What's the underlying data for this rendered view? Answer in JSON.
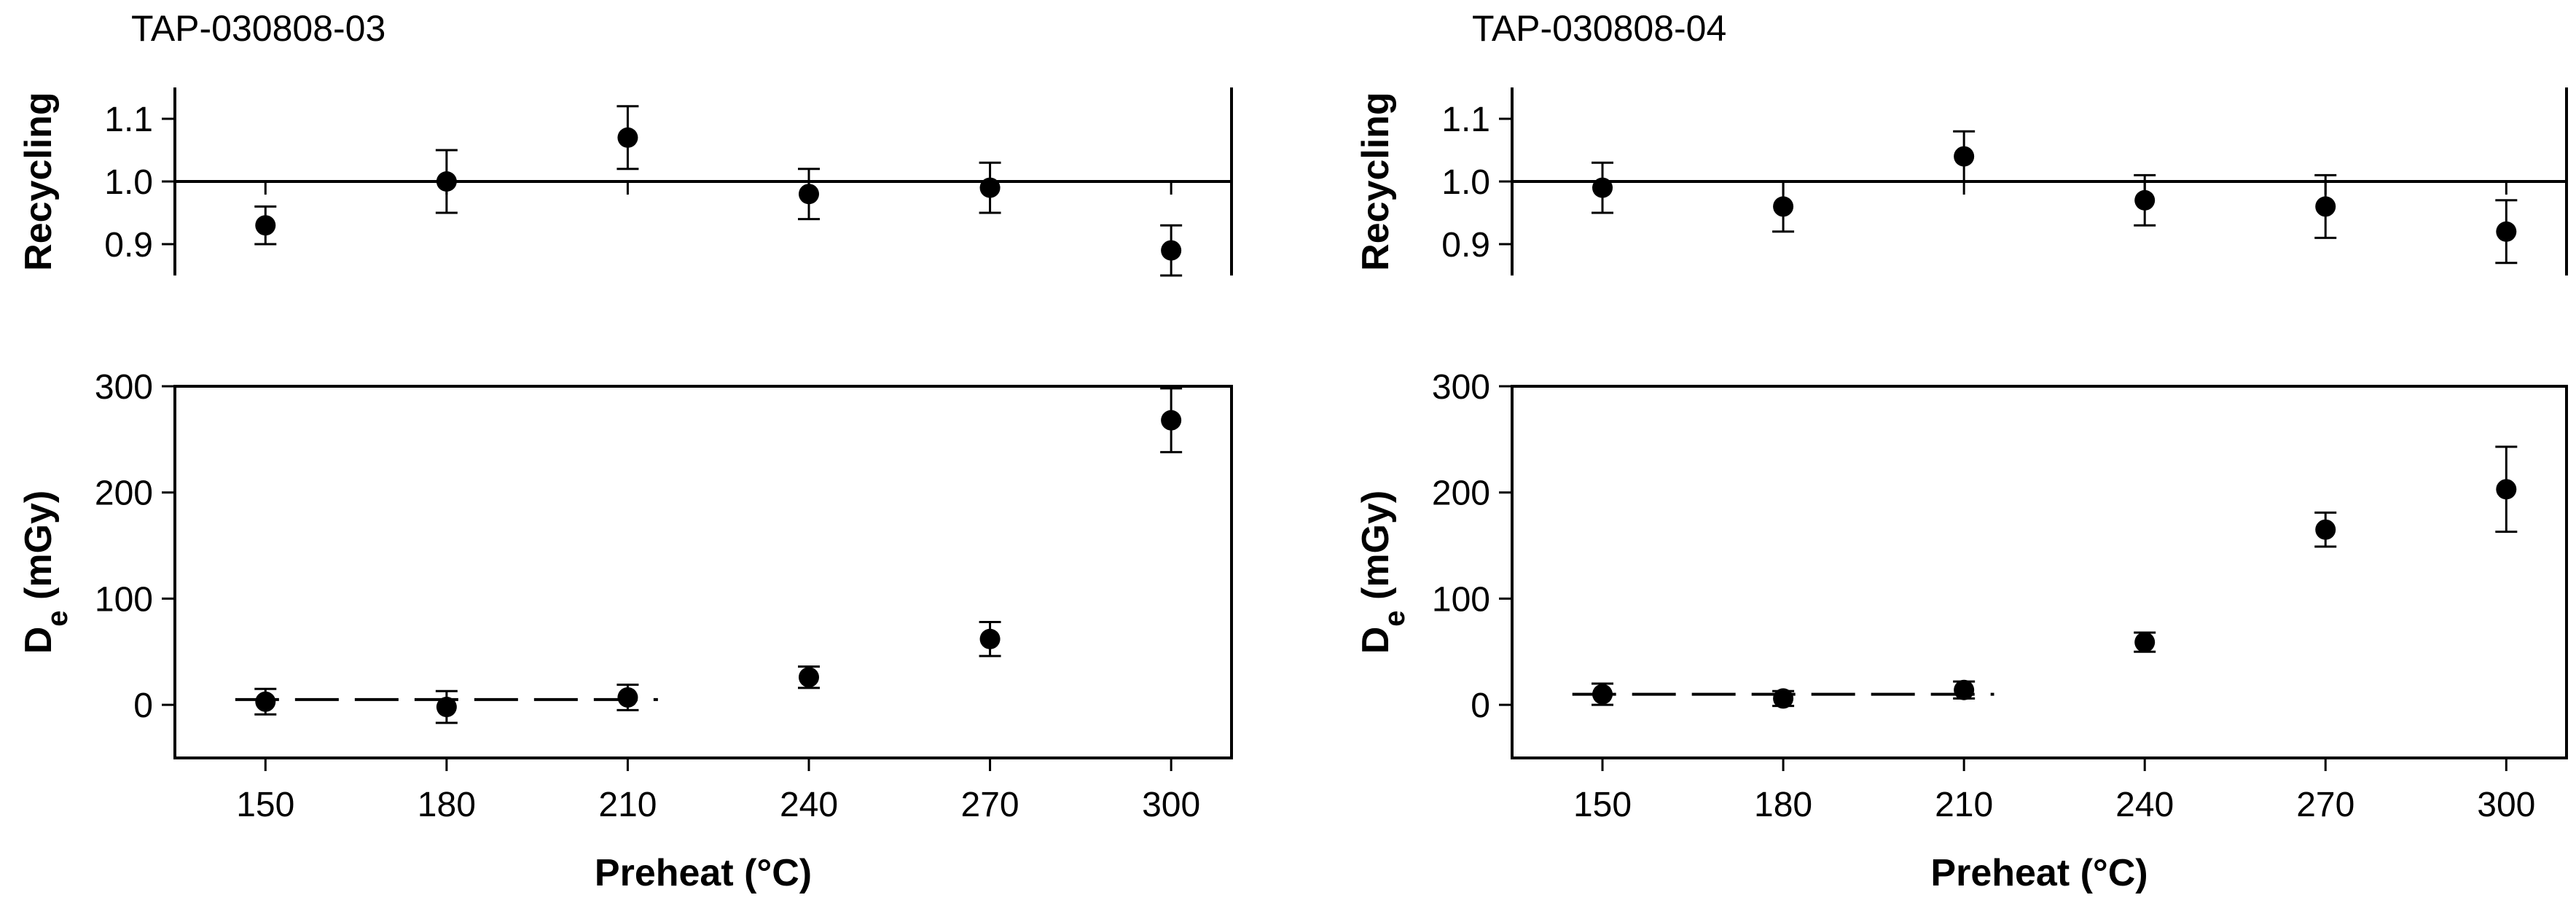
{
  "chart_data": [
    {
      "type": "scatter",
      "title": "TAP-030808-03",
      "panels": [
        {
          "id": "recycling",
          "ylabel": "Recycling",
          "ylim": [
            0.85,
            1.15
          ],
          "yticks": [
            0.9,
            1.0,
            1.1
          ],
          "ytick_labels": [
            "0.9",
            "1.0",
            "1.1"
          ],
          "reference_line": 1.0,
          "x": [
            150,
            180,
            210,
            240,
            270,
            300
          ],
          "values": [
            0.93,
            1.0,
            1.07,
            0.98,
            0.99,
            0.89
          ],
          "errors": [
            0.03,
            0.05,
            0.05,
            0.04,
            0.04,
            0.04
          ]
        },
        {
          "id": "de",
          "ylabel": "D",
          "ylabel_subscript": "e",
          "ylabel_unit": "(mGy)",
          "ylim": [
            -50,
            300
          ],
          "yticks": [
            0,
            100,
            200,
            300
          ],
          "ytick_labels": [
            "0",
            "100",
            "200",
            "300"
          ],
          "x": [
            150,
            180,
            210,
            240,
            270,
            300
          ],
          "values": [
            3,
            -2,
            7,
            26,
            62,
            268
          ],
          "errors": [
            12,
            15,
            12,
            10,
            16,
            30
          ],
          "dashed_line": {
            "x": [
              145,
              215
            ],
            "y": 5
          }
        }
      ],
      "xlabel": "Preheat (°C)",
      "xlim": [
        135,
        310
      ],
      "xticks": [
        150,
        180,
        210,
        240,
        270,
        300
      ],
      "xtick_labels": [
        "150",
        "180",
        "210",
        "240",
        "270",
        "300"
      ]
    },
    {
      "type": "scatter",
      "title": "TAP-030808-04",
      "panels": [
        {
          "id": "recycling",
          "ylabel": "Recycling",
          "ylim": [
            0.85,
            1.15
          ],
          "yticks": [
            0.9,
            1.0,
            1.1
          ],
          "ytick_labels": [
            "0.9",
            "1.0",
            "1.1"
          ],
          "reference_line": 1.0,
          "x": [
            150,
            180,
            210,
            240,
            270,
            300
          ],
          "values": [
            0.99,
            0.96,
            1.04,
            0.97,
            0.96,
            0.92
          ],
          "errors": [
            0.04,
            0.04,
            0.04,
            0.04,
            0.05,
            0.05
          ]
        },
        {
          "id": "de",
          "ylabel": "D",
          "ylabel_subscript": "e",
          "ylabel_unit": "(mGy)",
          "ylim": [
            -50,
            300
          ],
          "yticks": [
            0,
            100,
            200,
            300
          ],
          "ytick_labels": [
            "0",
            "100",
            "200",
            "300"
          ],
          "x": [
            150,
            180,
            210,
            240,
            270,
            300
          ],
          "values": [
            10,
            6,
            14,
            59,
            165,
            203
          ],
          "errors": [
            10,
            7,
            8,
            9,
            16,
            40
          ],
          "dashed_line": {
            "x": [
              145,
              215
            ],
            "y": 10
          }
        }
      ],
      "xlabel": "Preheat (°C)",
      "xlim": [
        135,
        310
      ],
      "xticks": [
        150,
        180,
        210,
        240,
        270,
        300
      ],
      "xtick_labels": [
        "150",
        "180",
        "210",
        "240",
        "270",
        "300"
      ]
    }
  ]
}
